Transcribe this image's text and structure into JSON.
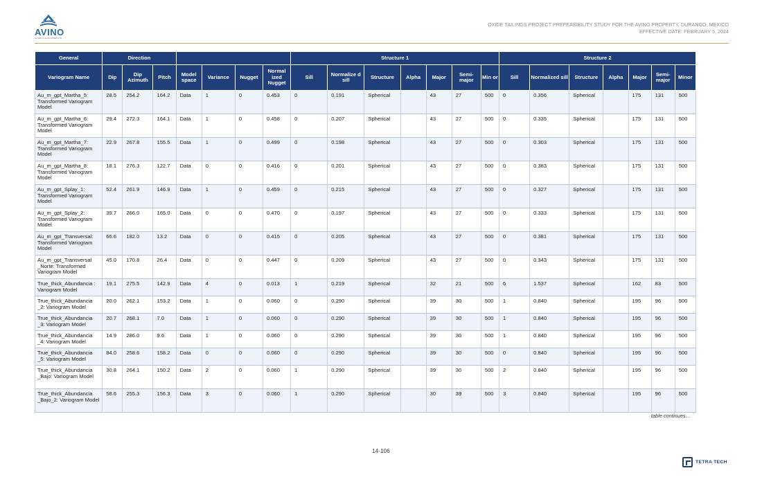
{
  "logo": {
    "text": "AVINO",
    "sub": "SILVER & GOLD MINES LTD."
  },
  "header": {
    "line1": "OXIDE TAILINGS PROJECT PREFEASIBILITY STUDY FOR THE AVINO PROPERTY, DURANGO, MEXICO",
    "line2": "EFFECTIVE DATE: FEBRUARY 5, 2024"
  },
  "table": {
    "groups": {
      "general": "General",
      "direction": "Direction",
      "structure1": "Structure 1",
      "structure2": "Structure 2"
    },
    "columns": [
      "Variogram Name",
      "Dip",
      "Dip Azimuth",
      "Pitch",
      "Model space",
      "Variance",
      "Nugget",
      "Normal ized Nugget",
      "Sill",
      "Normalize d sill",
      "Structure",
      "Alpha",
      "Major",
      "Semi- major",
      "Min or",
      "Sill",
      "Normalized sill",
      "Structure",
      "Alpha",
      "Major",
      "Semi- major",
      "Minor"
    ],
    "rows": [
      [
        "Au_m_gpt_Martha_5: Transformed Variogram Model",
        "28.5",
        "254.2",
        "164.2",
        "Data",
        "1",
        "0",
        "0.453",
        "0",
        "0.191",
        "Spherical",
        "",
        "43",
        "27",
        "500",
        "0",
        "0.356",
        "Spherical",
        "",
        "175",
        "131",
        "500"
      ],
      [
        "Au_m_gpt_Martha_6: Transformed Variogram Model",
        "29.4",
        "272.3",
        "164.1",
        "Data",
        "1",
        "0",
        "0.458",
        "0",
        "0.207",
        "Spherical",
        "",
        "43",
        "27",
        "500",
        "0",
        "0.335",
        "Spherical",
        "",
        "175",
        "131",
        "500"
      ],
      [
        "Au_m_gpt_Martha_7: Transformed Variogram Model",
        "22.9",
        "267.8",
        "155.5",
        "Data",
        "1",
        "0",
        "0.499",
        "0",
        "0.198",
        "Spherical",
        "",
        "43",
        "27",
        "500",
        "0",
        "0.303",
        "Spherical",
        "",
        "175",
        "131",
        "500"
      ],
      [
        "Au_m_gpt_Martha_8: Transformed Variogram Model",
        "18.1",
        "276.3",
        "122.7",
        "Data",
        "0",
        "0",
        "0.416",
        "0",
        "0.201",
        "Spherical",
        "",
        "43",
        "27",
        "500",
        "0",
        "0.383",
        "Spherical",
        "",
        "175",
        "131",
        "500"
      ],
      [
        "Au_m_gpt_Splay_1: Transformed Variogram Model",
        "52.4",
        "261.9",
        "146.9",
        "Data",
        "1",
        "0",
        "0.459",
        "0",
        "0.215",
        "Spherical",
        "",
        "43",
        "27",
        "500",
        "0",
        "0.327",
        "Spherical",
        "",
        "175",
        "131",
        "500"
      ],
      [
        "Au_m_gpt_Splay_2: Transformed Variogram Model",
        "39.7",
        "266.0",
        "165.0",
        "Data",
        "0",
        "0",
        "0.470",
        "0",
        "0.197",
        "Spherical",
        "",
        "43",
        "27",
        "500",
        "0",
        "0.333",
        "Spherical",
        "",
        "175",
        "131",
        "500"
      ],
      [
        "Au_m_gpt_Transversal: Transformed Variogram Model",
        "66.6",
        "182.0",
        "13.2",
        "Data",
        "0",
        "0",
        "0.415",
        "0",
        "0.205",
        "Spherical",
        "",
        "43",
        "27",
        "500",
        "0",
        "0.381",
        "Spherical",
        "",
        "175",
        "131",
        "500"
      ],
      [
        "Au_m_gpt_Transversal _Norte: Transformed Variogram Model",
        "45.0",
        "170.8",
        "26.4",
        "Data",
        "0",
        "0",
        "0.447",
        "0",
        "0.209",
        "Spherical",
        "",
        "43",
        "27",
        "500",
        "0",
        "0.343",
        "Spherical",
        "",
        "175",
        "131",
        "500"
      ],
      [
        "True_thick_Abundancia : Variogram Model",
        "19.1",
        "275.5",
        "142.9",
        "Data",
        "4",
        "0",
        "0.013",
        "1",
        "0.219",
        "Spherical",
        "",
        "32",
        "21",
        "500",
        "6",
        "1.537",
        "Spherical",
        "",
        "162",
        "83",
        "500"
      ],
      [
        "True_thick_Abundancia _2: Variogram Model",
        "20.0",
        "262.1",
        "153.2",
        "Data",
        "1",
        "0",
        "0.060",
        "0",
        "0.290",
        "Spherical",
        "",
        "39",
        "30",
        "500",
        "1",
        "0.840",
        "Spherical",
        "",
        "195",
        "96",
        "500"
      ],
      [
        "True_thick_Abundancia _3: Variogram Model",
        "20.7",
        "268.1",
        "7.0",
        "Data",
        "1",
        "0",
        "0.060",
        "0",
        "0.290",
        "Spherical",
        "",
        "39",
        "30",
        "500",
        "1",
        "0.840",
        "Spherical",
        "",
        "195",
        "96",
        "500"
      ],
      [
        "True_thick_Abundancia _4: Variogram Model",
        "14.9",
        "286.0",
        "9.6",
        "Data",
        "1",
        "0",
        "0.060",
        "0",
        "0.290",
        "Spherical",
        "",
        "39",
        "30",
        "500",
        "1",
        "0.840",
        "Spherical",
        "",
        "195",
        "96",
        "500"
      ],
      [
        "True_thick_Abundancia _5: Variogram Model",
        "84.0",
        "258.6",
        "158.2",
        "Data",
        "0",
        "0",
        "0.060",
        "0",
        "0.290",
        "Spherical",
        "",
        "39",
        "30",
        "500",
        "0",
        "0.840",
        "Spherical",
        "",
        "195",
        "96",
        "500"
      ],
      [
        "True_thick_Abundancia _Bajo: Variogram Model",
        "30.8",
        "264.1",
        "150.2",
        "Data",
        "2",
        "0",
        "0.060",
        "1",
        "0.290",
        "Spherical",
        "",
        "39",
        "30",
        "500",
        "2",
        "0.840",
        "Spherical",
        "",
        "195",
        "96",
        "500"
      ],
      [
        "True_thick_Abundancia _Bajo_2: Variogram Model",
        "58.6",
        "255.3",
        "156.3",
        "Data",
        "3",
        "0",
        "0.060",
        "1",
        "0.290",
        "Spherical",
        "",
        "30",
        "39",
        "500",
        "3",
        "0.840",
        "Spherical",
        "",
        "195",
        "96",
        "500"
      ]
    ],
    "continues": "table continues…"
  },
  "footer": {
    "page": "14-106",
    "tetra_tech": "TETRA TECH"
  },
  "colors": {
    "header_bg": "#1f3e7a",
    "row_alt": "#eef2f9",
    "rule": "#c9a96a"
  }
}
